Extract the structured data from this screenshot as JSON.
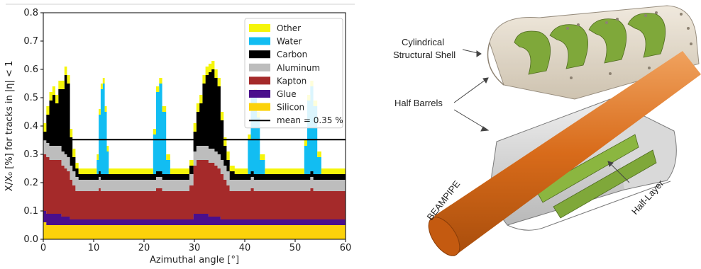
{
  "chart_data": {
    "type": "area",
    "stacked": true,
    "xlabel": "Azimuthal angle [°]",
    "ylabel": "X/X₀ [%] for tracks in |η| < 1",
    "xlim": [
      0,
      60
    ],
    "ylim": [
      0,
      0.8
    ],
    "xticks": [
      0,
      10,
      20,
      30,
      40,
      50,
      60
    ],
    "yticks": [
      0.0,
      0.1,
      0.2,
      0.3,
      0.4,
      0.5,
      0.6,
      0.7,
      0.8
    ],
    "grid": false,
    "legend_position": "top-right",
    "mean_line": {
      "label": "mean = 0.35 %",
      "value": 0.352,
      "color": "#000000"
    },
    "x": [
      0,
      0.6,
      1.2,
      1.8,
      2.4,
      3.0,
      3.6,
      4.2,
      4.7,
      5.3,
      5.8,
      6.4,
      7.0,
      7.6,
      8.2,
      8.8,
      9.4,
      10.0,
      10.6,
      11.0,
      11.4,
      11.8,
      12.2,
      12.6,
      13.0,
      14.0,
      15.0,
      16.0,
      17.0,
      18.0,
      19.0,
      20.0,
      21.0,
      21.8,
      22.4,
      23.0,
      23.6,
      24.4,
      25.2,
      26.0,
      27.0,
      28.0,
      29.0,
      29.8,
      30.4,
      31.0,
      31.6,
      32.2,
      32.8,
      33.4,
      34.0,
      34.6,
      35.2,
      35.8,
      36.4,
      37.0,
      38.0,
      39.0,
      40.0,
      40.6,
      41.2,
      41.8,
      42.4,
      43.0,
      44.0,
      45.0,
      46.0,
      47.0,
      48.0,
      49.0,
      50.0,
      51.0,
      51.8,
      52.4,
      53.0,
      53.6,
      54.4,
      55.2,
      56.0,
      57.0,
      58.0,
      59.0,
      59.6,
      60.0
    ],
    "series": [
      {
        "name": "Silicon",
        "color": "#fcd20a",
        "values": [
          0.06,
          0.05,
          0.05,
          0.05,
          0.05,
          0.05,
          0.05,
          0.05,
          0.05,
          0.05,
          0.05,
          0.05,
          0.05,
          0.05,
          0.05,
          0.05,
          0.05,
          0.05,
          0.05,
          0.05,
          0.05,
          0.05,
          0.05,
          0.05,
          0.05,
          0.05,
          0.05,
          0.05,
          0.05,
          0.05,
          0.05,
          0.05,
          0.05,
          0.05,
          0.05,
          0.05,
          0.05,
          0.05,
          0.05,
          0.05,
          0.05,
          0.05,
          0.05,
          0.05,
          0.05,
          0.05,
          0.05,
          0.05,
          0.05,
          0.05,
          0.05,
          0.05,
          0.05,
          0.05,
          0.05,
          0.05,
          0.05,
          0.05,
          0.05,
          0.05,
          0.05,
          0.05,
          0.05,
          0.05,
          0.05,
          0.05,
          0.05,
          0.05,
          0.05,
          0.05,
          0.05,
          0.05,
          0.05,
          0.05,
          0.05,
          0.05,
          0.05,
          0.05,
          0.05,
          0.05,
          0.05,
          0.05,
          0.05,
          0.05
        ]
      },
      {
        "name": "Glue",
        "color": "#4a0f8c",
        "values": [
          0.04,
          0.04,
          0.04,
          0.04,
          0.04,
          0.04,
          0.03,
          0.03,
          0.03,
          0.02,
          0.02,
          0.02,
          0.02,
          0.02,
          0.02,
          0.02,
          0.02,
          0.02,
          0.02,
          0.02,
          0.02,
          0.02,
          0.02,
          0.02,
          0.02,
          0.02,
          0.02,
          0.02,
          0.02,
          0.02,
          0.02,
          0.02,
          0.02,
          0.02,
          0.02,
          0.02,
          0.02,
          0.02,
          0.02,
          0.02,
          0.02,
          0.02,
          0.02,
          0.04,
          0.04,
          0.04,
          0.04,
          0.04,
          0.03,
          0.03,
          0.03,
          0.03,
          0.02,
          0.02,
          0.02,
          0.02,
          0.02,
          0.02,
          0.02,
          0.02,
          0.02,
          0.02,
          0.02,
          0.02,
          0.02,
          0.02,
          0.02,
          0.02,
          0.02,
          0.02,
          0.02,
          0.02,
          0.02,
          0.02,
          0.02,
          0.02,
          0.02,
          0.02,
          0.02,
          0.02,
          0.02,
          0.02,
          0.02,
          0.02
        ]
      },
      {
        "name": "Kapton",
        "color": "#a52a2a",
        "values": [
          0.2,
          0.2,
          0.19,
          0.19,
          0.19,
          0.19,
          0.18,
          0.17,
          0.16,
          0.14,
          0.12,
          0.1,
          0.1,
          0.1,
          0.1,
          0.1,
          0.1,
          0.1,
          0.1,
          0.11,
          0.1,
          0.1,
          0.1,
          0.1,
          0.1,
          0.1,
          0.1,
          0.1,
          0.1,
          0.1,
          0.1,
          0.1,
          0.1,
          0.1,
          0.11,
          0.11,
          0.1,
          0.1,
          0.1,
          0.1,
          0.1,
          0.1,
          0.12,
          0.17,
          0.19,
          0.19,
          0.19,
          0.19,
          0.19,
          0.19,
          0.18,
          0.17,
          0.16,
          0.14,
          0.12,
          0.1,
          0.1,
          0.1,
          0.1,
          0.1,
          0.11,
          0.1,
          0.1,
          0.1,
          0.1,
          0.1,
          0.1,
          0.1,
          0.1,
          0.1,
          0.1,
          0.1,
          0.1,
          0.1,
          0.11,
          0.1,
          0.1,
          0.1,
          0.1,
          0.1,
          0.1,
          0.1,
          0.1,
          0.11
        ]
      },
      {
        "name": "Aluminum",
        "color": "#bdbdbd",
        "values": [
          0.05,
          0.05,
          0.05,
          0.05,
          0.05,
          0.05,
          0.05,
          0.05,
          0.05,
          0.05,
          0.05,
          0.05,
          0.04,
          0.04,
          0.04,
          0.04,
          0.04,
          0.04,
          0.04,
          0.04,
          0.04,
          0.04,
          0.04,
          0.04,
          0.04,
          0.04,
          0.04,
          0.04,
          0.04,
          0.04,
          0.04,
          0.04,
          0.04,
          0.04,
          0.04,
          0.04,
          0.04,
          0.04,
          0.04,
          0.04,
          0.04,
          0.04,
          0.04,
          0.05,
          0.05,
          0.05,
          0.05,
          0.05,
          0.05,
          0.05,
          0.05,
          0.05,
          0.05,
          0.05,
          0.05,
          0.04,
          0.04,
          0.04,
          0.04,
          0.04,
          0.04,
          0.04,
          0.04,
          0.04,
          0.04,
          0.04,
          0.04,
          0.04,
          0.04,
          0.04,
          0.04,
          0.04,
          0.04,
          0.04,
          0.04,
          0.04,
          0.04,
          0.04,
          0.04,
          0.04,
          0.04,
          0.04,
          0.04,
          0.04
        ]
      },
      {
        "name": "Carbon",
        "color": "#000000",
        "values": [
          0.03,
          0.1,
          0.16,
          0.18,
          0.15,
          0.2,
          0.22,
          0.28,
          0.26,
          0.1,
          0.05,
          0.03,
          0.02,
          0.02,
          0.02,
          0.02,
          0.02,
          0.02,
          0.02,
          0.02,
          0.02,
          0.02,
          0.02,
          0.02,
          0.02,
          0.02,
          0.02,
          0.02,
          0.02,
          0.02,
          0.02,
          0.02,
          0.02,
          0.02,
          0.02,
          0.02,
          0.02,
          0.02,
          0.02,
          0.02,
          0.02,
          0.02,
          0.03,
          0.07,
          0.12,
          0.15,
          0.22,
          0.25,
          0.27,
          0.28,
          0.26,
          0.24,
          0.14,
          0.07,
          0.04,
          0.03,
          0.02,
          0.02,
          0.02,
          0.02,
          0.02,
          0.02,
          0.02,
          0.02,
          0.02,
          0.02,
          0.02,
          0.02,
          0.02,
          0.02,
          0.02,
          0.02,
          0.02,
          0.02,
          0.02,
          0.02,
          0.02,
          0.02,
          0.02,
          0.02,
          0.02,
          0.02,
          0.02,
          0.02
        ]
      },
      {
        "name": "Water",
        "color": "#12bdf2",
        "values": [
          0,
          0,
          0,
          0,
          0,
          0,
          0,
          0,
          0,
          0,
          0,
          0,
          0,
          0,
          0,
          0,
          0,
          0,
          0.05,
          0.2,
          0.3,
          0.32,
          0.22,
          0.08,
          0,
          0,
          0,
          0,
          0,
          0,
          0,
          0,
          0,
          0.14,
          0.28,
          0.31,
          0.22,
          0.05,
          0,
          0,
          0,
          0,
          0,
          0,
          0,
          0,
          0,
          0,
          0,
          0,
          0,
          0,
          0,
          0,
          0,
          0,
          0,
          0,
          0,
          0.12,
          0.26,
          0.28,
          0.2,
          0.05,
          0,
          0,
          0,
          0,
          0,
          0,
          0,
          0,
          0.1,
          0.26,
          0.3,
          0.24,
          0.06,
          0,
          0,
          0,
          0,
          0,
          0,
          0
        ]
      },
      {
        "name": "Other",
        "color": "#f5f50a",
        "values": [
          0.03,
          0.03,
          0.03,
          0.03,
          0.03,
          0.03,
          0.03,
          0.03,
          0.03,
          0.03,
          0.03,
          0.02,
          0.02,
          0.02,
          0.02,
          0.02,
          0.02,
          0.02,
          0.02,
          0.02,
          0.02,
          0.02,
          0.02,
          0.02,
          0.02,
          0.02,
          0.02,
          0.02,
          0.02,
          0.02,
          0.02,
          0.02,
          0.02,
          0.02,
          0.02,
          0.02,
          0.02,
          0.02,
          0.02,
          0.02,
          0.02,
          0.02,
          0.02,
          0.03,
          0.03,
          0.03,
          0.03,
          0.03,
          0.03,
          0.03,
          0.03,
          0.03,
          0.03,
          0.03,
          0.03,
          0.02,
          0.02,
          0.02,
          0.02,
          0.02,
          0.02,
          0.02,
          0.02,
          0.02,
          0.02,
          0.02,
          0.02,
          0.02,
          0.02,
          0.02,
          0.02,
          0.02,
          0.02,
          0.02,
          0.02,
          0.02,
          0.02,
          0.02,
          0.02,
          0.02,
          0.02,
          0.02,
          0.02,
          0.02
        ]
      }
    ],
    "legend_order": [
      "Other",
      "Water",
      "Carbon",
      "Aluminum",
      "Kapton",
      "Glue",
      "Silicon"
    ]
  },
  "diagram": {
    "labels": {
      "shell_line1": "Cylindrical",
      "shell_line2": "Structural Shell",
      "half_barrels": "Half Barrels",
      "half_layer": "Half-Layer",
      "beampipe": "BEAMPIPE"
    },
    "colors": {
      "beampipe": "#d86b1a",
      "shell": "#d8cfc0",
      "layer": "#7fa83a",
      "barrel": "#cfcfcf"
    }
  }
}
